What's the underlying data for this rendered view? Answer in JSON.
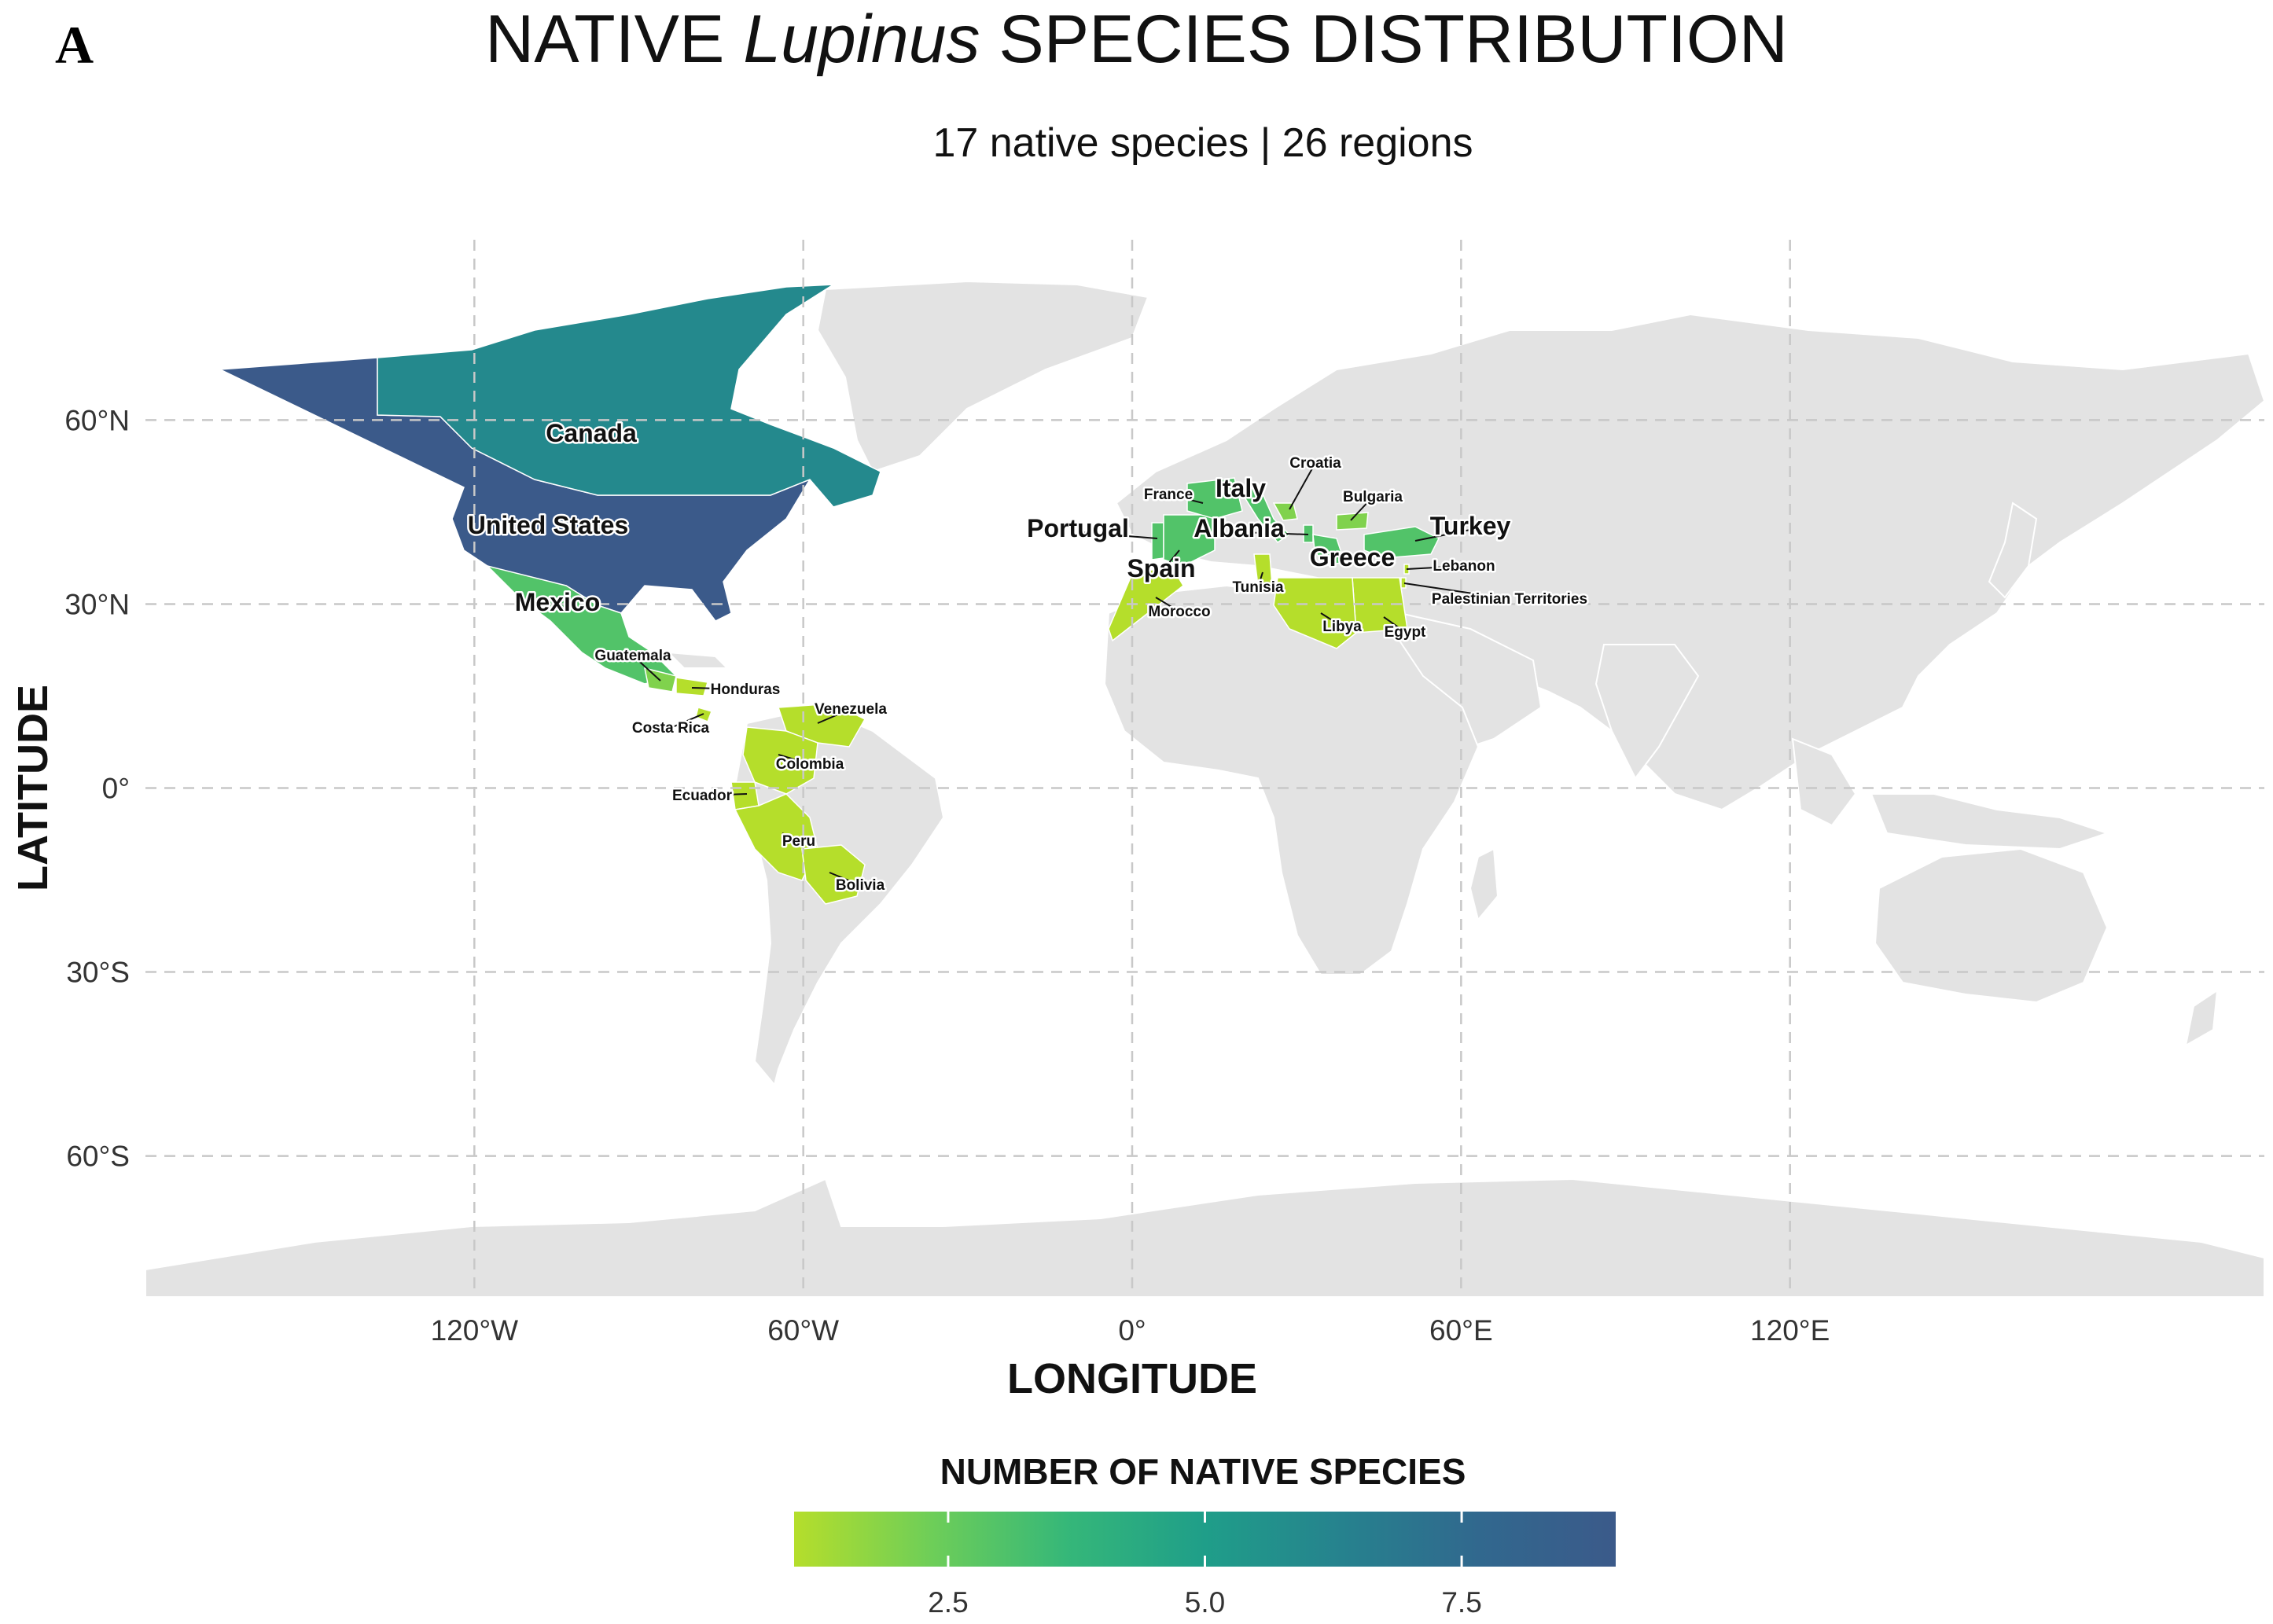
{
  "figure": {
    "panel_letter": "A",
    "title_prefix": "NATIVE ",
    "title_italic": "Lupinus",
    "title_suffix": " SPECIES DISTRIBUTION",
    "subtitle": "17 native species | 26 regions"
  },
  "axes": {
    "x_title": "LONGITUDE",
    "y_title": "LATITUDE",
    "x_ticks": [
      "120°W",
      "60°W",
      "0°",
      "60°E",
      "120°E"
    ],
    "x_tick_values": [
      -120,
      -60,
      0,
      60,
      120
    ],
    "y_ticks": [
      "60°N",
      "30°N",
      "0°",
      "30°S",
      "60°S"
    ],
    "y_tick_values": [
      60,
      30,
      0,
      -30,
      -60
    ]
  },
  "legend": {
    "title": "NUMBER OF NATIVE SPECIES",
    "tick_labels": [
      "2.5",
      "5.0",
      "7.5"
    ],
    "tick_values": [
      2.5,
      5.0,
      7.5
    ],
    "range": [
      1,
      9
    ],
    "colors": [
      "#b5de2b",
      "#6ece58",
      "#35b779",
      "#1f9e89",
      "#26828e",
      "#31688e",
      "#3b5a8a"
    ]
  },
  "chart_data": {
    "type": "choropleth",
    "title": "NATIVE Lupinus SPECIES DISTRIBUTION",
    "subtitle": "17 native species | 26 regions",
    "xlabel": "LONGITUDE",
    "ylabel": "LATITUDE",
    "value_label": "NUMBER OF NATIVE SPECIES",
    "regions": [
      {
        "name": "United States",
        "value": 9
      },
      {
        "name": "Canada",
        "value": 6
      },
      {
        "name": "Mexico",
        "value": 3
      },
      {
        "name": "Guatemala",
        "value": 2
      },
      {
        "name": "Honduras",
        "value": 1
      },
      {
        "name": "Costa Rica",
        "value": 1
      },
      {
        "name": "Venezuela",
        "value": 1
      },
      {
        "name": "Colombia",
        "value": 1
      },
      {
        "name": "Ecuador",
        "value": 1
      },
      {
        "name": "Peru",
        "value": 1
      },
      {
        "name": "Bolivia",
        "value": 1
      },
      {
        "name": "Portugal",
        "value": 3
      },
      {
        "name": "Spain",
        "value": 3
      },
      {
        "name": "France",
        "value": 3
      },
      {
        "name": "Italy",
        "value": 3
      },
      {
        "name": "Croatia",
        "value": 2
      },
      {
        "name": "Albania",
        "value": 3
      },
      {
        "name": "Greece",
        "value": 3
      },
      {
        "name": "Bulgaria",
        "value": 2
      },
      {
        "name": "Turkey",
        "value": 3
      },
      {
        "name": "Lebanon",
        "value": 1
      },
      {
        "name": "Palestinian Territories",
        "value": 1
      },
      {
        "name": "Egypt",
        "value": 1
      },
      {
        "name": "Libya",
        "value": 1
      },
      {
        "name": "Tunisia",
        "value": 1
      },
      {
        "name": "Morocco",
        "value": 1
      }
    ]
  },
  "labels": [
    {
      "text": "Canada",
      "size": "large"
    },
    {
      "text": "United States",
      "size": "large"
    },
    {
      "text": "Mexico",
      "size": "large"
    },
    {
      "text": "Guatemala",
      "size": "small"
    },
    {
      "text": "Honduras",
      "size": "small"
    },
    {
      "text": "Costa Rica",
      "size": "small"
    },
    {
      "text": "Venezuela",
      "size": "small"
    },
    {
      "text": "Colombia",
      "size": "small"
    },
    {
      "text": "Ecuador",
      "size": "small"
    },
    {
      "text": "Peru",
      "size": "small"
    },
    {
      "text": "Bolivia",
      "size": "small"
    },
    {
      "text": "Portugal",
      "size": "large"
    },
    {
      "text": "Spain",
      "size": "large"
    },
    {
      "text": "France",
      "size": "small"
    },
    {
      "text": "Italy",
      "size": "large"
    },
    {
      "text": "Croatia",
      "size": "small"
    },
    {
      "text": "Albania",
      "size": "large"
    },
    {
      "text": "Greece",
      "size": "large"
    },
    {
      "text": "Bulgaria",
      "size": "small"
    },
    {
      "text": "Turkey",
      "size": "large"
    },
    {
      "text": "Lebanon",
      "size": "small"
    },
    {
      "text": "Palestinian Territories",
      "size": "small"
    },
    {
      "text": "Egypt",
      "size": "small"
    },
    {
      "text": "Libya",
      "size": "small"
    },
    {
      "text": "Tunisia",
      "size": "small"
    },
    {
      "text": "Morocco",
      "size": "small"
    }
  ]
}
